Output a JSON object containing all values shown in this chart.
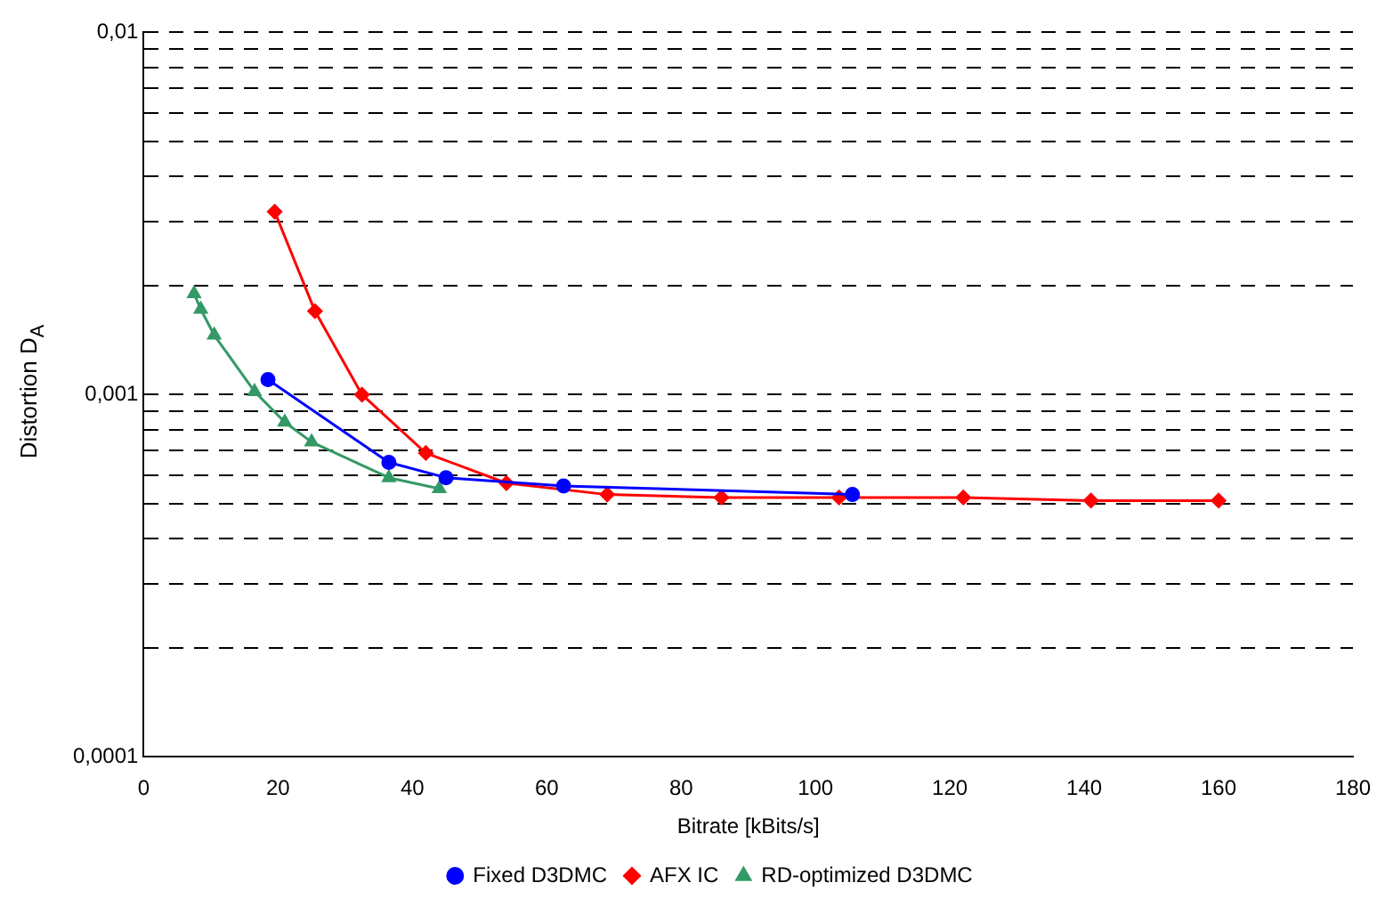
{
  "chart_data": {
    "type": "line",
    "xlabel": "Bitrate [kBits/s]",
    "ylabel": "Distortion D$_{A}$",
    "log": "y",
    "grid": "y",
    "legend": "bottom",
    "line_style": "solid",
    "xlim": [
      0,
      180
    ],
    "xticks": [
      0,
      20,
      40,
      60,
      80,
      100,
      120,
      140,
      160,
      180
    ],
    "ylim": [
      0.0001,
      0.01
    ],
    "yticks": [
      {
        "value": 0.0001,
        "label": "0,0001"
      },
      {
        "value": 0.0002,
        "label": null
      },
      {
        "value": 0.0003,
        "label": null
      },
      {
        "value": 0.0004,
        "label": null
      },
      {
        "value": 0.0005,
        "label": null
      },
      {
        "value": 0.0006,
        "label": null
      },
      {
        "value": 0.0007,
        "label": null
      },
      {
        "value": 0.0008,
        "label": null
      },
      {
        "value": 0.0009,
        "label": null
      },
      {
        "value": 0.001,
        "label": "0,001"
      },
      {
        "value": 0.002,
        "label": null
      },
      {
        "value": 0.003,
        "label": null
      },
      {
        "value": 0.004,
        "label": null
      },
      {
        "value": 0.005,
        "label": null
      },
      {
        "value": 0.006,
        "label": null
      },
      {
        "value": 0.007,
        "label": null
      },
      {
        "value": 0.008,
        "label": null
      },
      {
        "value": 0.009,
        "label": null
      },
      {
        "value": 0.01,
        "label": "0,01"
      }
    ],
    "series": [
      {
        "name": "Fixed D3DMC",
        "color": "#0000ff",
        "marker": "circle",
        "x": [
          18.5,
          36.5,
          45,
          62.5,
          105.5
        ],
        "values": [
          0.0011,
          0.00065,
          0.00059,
          0.00056,
          0.00053
        ]
      },
      {
        "name": "AFX IC",
        "color": "#ff0000",
        "marker": "diamond",
        "x": [
          19.5,
          25.5,
          32.5,
          42,
          54,
          69,
          86,
          103.5,
          122,
          141,
          160
        ],
        "values": [
          0.0032,
          0.0017,
          0.001,
          0.00069,
          0.00057,
          0.00053,
          0.00052,
          0.00052,
          0.00052,
          0.00051,
          0.00051
        ]
      },
      {
        "name": "RD-optimized D3DMC",
        "color": "#339966",
        "marker": "triangle",
        "x": [
          7.5,
          8.5,
          10.5,
          16.5,
          21,
          25,
          36.5,
          44
        ],
        "values": [
          0.0019,
          0.00172,
          0.00146,
          0.00102,
          0.00084,
          0.00074,
          0.00059,
          0.00055
        ]
      }
    ]
  }
}
